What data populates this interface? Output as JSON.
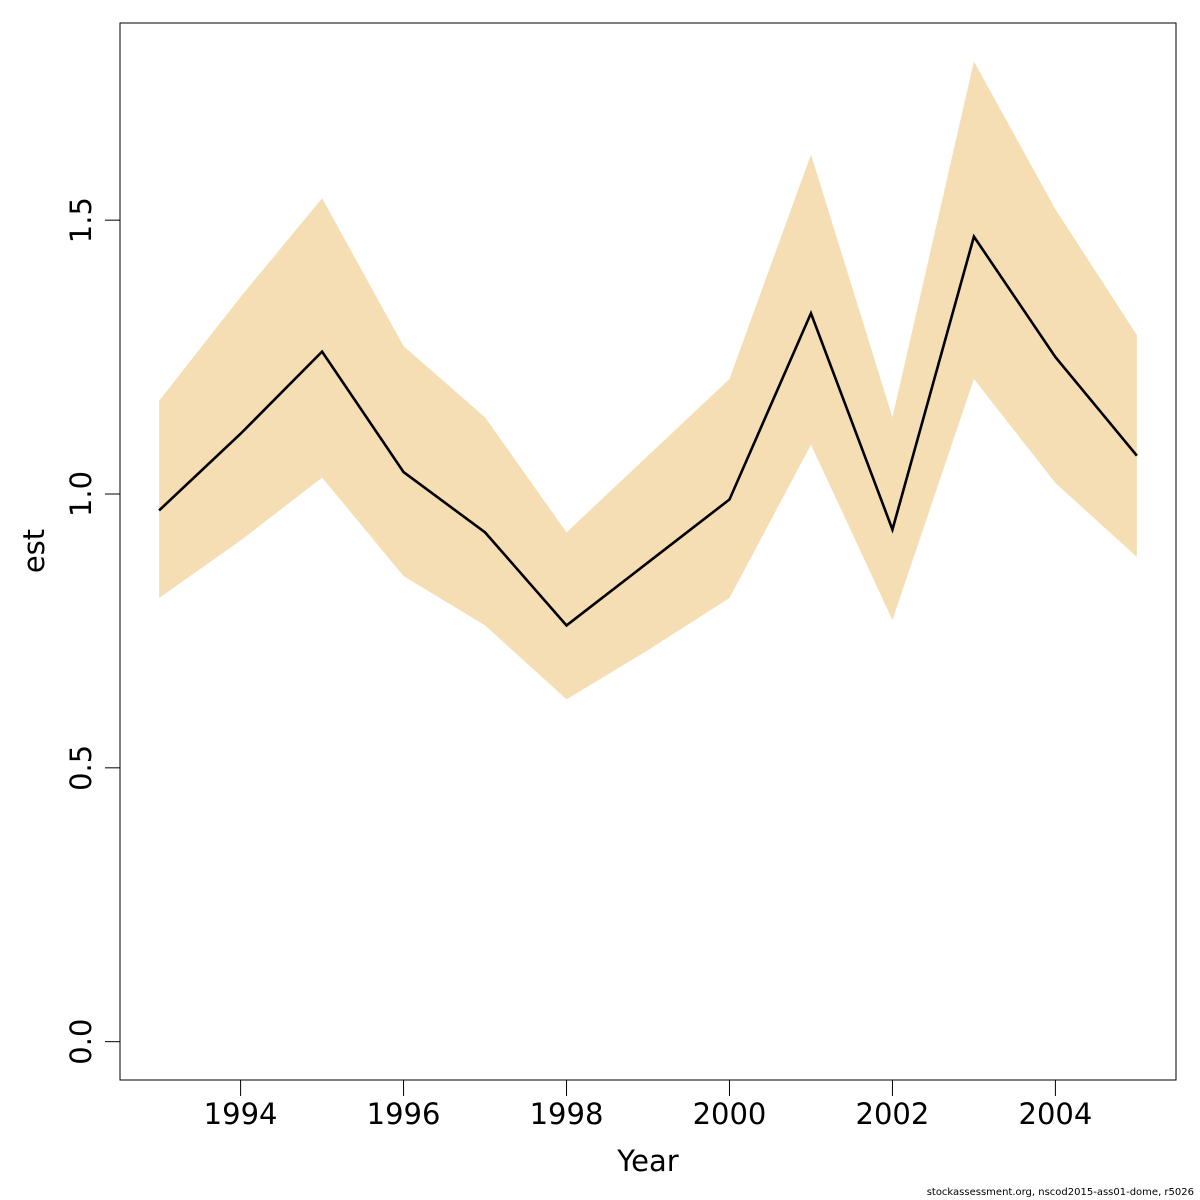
{
  "chart_data": {
    "type": "line",
    "xlabel": "Year",
    "ylabel": "est",
    "xlim": [
      1992.52,
      2005.48
    ],
    "ylim": [
      -0.07,
      1.86
    ],
    "x_ticks": [
      1994,
      1996,
      1998,
      2000,
      2002,
      2004
    ],
    "y_ticks": [
      0.0,
      0.5,
      1.0,
      1.5
    ],
    "y_tick_labels": [
      "0.0",
      "0.5",
      "1.0",
      "1.5"
    ],
    "grid": false,
    "band_color": "#f5deb3",
    "line_color": "#000000",
    "x": [
      1993,
      1994,
      1995,
      1996,
      1997,
      1998,
      1999,
      2000,
      2001,
      2002,
      2003,
      2004,
      2005
    ],
    "series": [
      {
        "values": [
          0.97,
          1.11,
          1.26,
          1.04,
          0.93,
          0.76,
          0.875,
          0.99,
          1.33,
          0.935,
          1.47,
          1.25,
          1.07
        ]
      }
    ],
    "band": {
      "lower": [
        0.81,
        0.915,
        1.03,
        0.85,
        0.76,
        0.625,
        0.715,
        0.81,
        1.09,
        0.77,
        1.21,
        1.02,
        0.885
      ],
      "upper": [
        1.17,
        1.36,
        1.54,
        1.27,
        1.14,
        0.93,
        1.07,
        1.21,
        1.62,
        1.14,
        1.79,
        1.52,
        1.29
      ]
    }
  },
  "footer_text": "stockassessment.org, nscod2015-ass01-dome, r5026"
}
